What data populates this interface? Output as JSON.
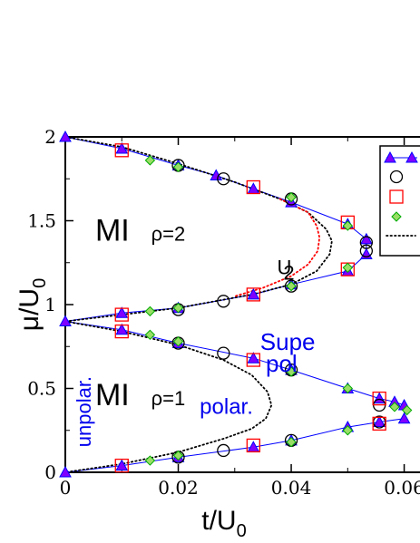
{
  "chart_data": {
    "type": "scatter",
    "title": "",
    "xlabel": "t/U",
    "xlabel_sub": "0",
    "ylabel": "μ/U",
    "ylabel_sub": "0",
    "xlim": [
      0,
      0.0628
    ],
    "ylim": [
      0,
      2
    ],
    "xticks": [
      0,
      0.02,
      0.04,
      0.06
    ],
    "xtick_labels": [
      "0",
      "0.02",
      "0.04",
      "0.06"
    ],
    "yticks": [
      0,
      0.5,
      1,
      1.5,
      2
    ],
    "ytick_labels": [
      "0",
      "0.5",
      "1",
      "1.5",
      "2"
    ],
    "grid": false,
    "legend_position": "top-right",
    "annotations": [
      {
        "text": "MI",
        "x": 0.0053,
        "y": 1.38,
        "style": "big"
      },
      {
        "text": "ρ=2",
        "x": 0.0152,
        "y": 1.38,
        "style": "rho"
      },
      {
        "text": "MI",
        "x": 0.0053,
        "y": 0.4,
        "style": "big"
      },
      {
        "text": "ρ=1",
        "x": 0.0152,
        "y": 0.4,
        "style": "rho"
      },
      {
        "text": "unpolar.",
        "x": 0.0045,
        "y": 0.15,
        "style": "blue-vertical"
      },
      {
        "text": "polar.",
        "x": 0.0238,
        "y": 0.35,
        "style": "blue"
      },
      {
        "text": "Supe",
        "x": 0.0345,
        "y": 0.73,
        "style": "blue-big"
      },
      {
        "text": "pol",
        "x": 0.0355,
        "y": 0.6,
        "style": "blue-big"
      },
      {
        "text": "U",
        "x": 0.0375,
        "y": 1.18,
        "style": "black"
      },
      {
        "text": "2",
        "x": 0.0386,
        "y": 1.15,
        "style": "black-sub"
      }
    ],
    "series": [
      {
        "marker": "triangle",
        "color": "#0000ff",
        "fill": "#7f00ff",
        "line": "solid",
        "points": [
          [
            0,
            2
          ],
          [
            0.01,
            1.93
          ],
          [
            0.02,
            1.83
          ],
          [
            0.0267,
            1.77
          ],
          [
            0.0333,
            1.69
          ],
          [
            0.04,
            1.61
          ],
          [
            0.05,
            1.48
          ],
          [
            0.0533,
            1.39
          ],
          [
            0.0533,
            1.3
          ],
          [
            0.05,
            1.2
          ],
          [
            0.04,
            1.12
          ],
          [
            0.0333,
            1.06
          ],
          [
            0.02,
            0.98
          ],
          [
            0.01,
            0.95
          ],
          [
            0,
            0.9
          ],
          [
            0.01,
            0.85
          ],
          [
            0.02,
            0.77
          ],
          [
            0.0333,
            0.68
          ],
          [
            0.04,
            0.61
          ],
          [
            0.05,
            0.5
          ],
          [
            0.0556,
            0.44
          ],
          [
            0.0583,
            0.42
          ],
          [
            0.06,
            0.4
          ],
          [
            0.06,
            0.32
          ],
          [
            0.0556,
            0.3
          ],
          [
            0.05,
            0.27
          ],
          [
            0.04,
            0.19
          ],
          [
            0.0333,
            0.15
          ],
          [
            0.02,
            0.09
          ],
          [
            0.01,
            0.04
          ],
          [
            0,
            0
          ]
        ]
      },
      {
        "marker": "circle",
        "color": "#000000",
        "points": [
          [
            0.02,
            1.83
          ],
          [
            0.028,
            1.75
          ],
          [
            0.04,
            1.63
          ],
          [
            0.0533,
            1.37
          ],
          [
            0.0533,
            1.32
          ],
          [
            0.04,
            1.11
          ],
          [
            0.028,
            1.02
          ],
          [
            0.02,
            0.97
          ],
          [
            0.02,
            0.77
          ],
          [
            0.028,
            0.71
          ],
          [
            0.04,
            0.61
          ],
          [
            0.0556,
            0.4
          ],
          [
            0.0556,
            0.3
          ],
          [
            0.04,
            0.19
          ],
          [
            0.028,
            0.13
          ],
          [
            0.02,
            0.09
          ]
        ]
      },
      {
        "marker": "square",
        "color": "#ff0000",
        "points": [
          [
            0.01,
            1.92
          ],
          [
            0.0333,
            1.7
          ],
          [
            0.05,
            1.49
          ],
          [
            0.05,
            1.21
          ],
          [
            0.0333,
            1.06
          ],
          [
            0.01,
            0.94
          ],
          [
            0.01,
            0.84
          ],
          [
            0.0333,
            0.67
          ],
          [
            0.0556,
            0.44
          ],
          [
            0.0556,
            0.29
          ],
          [
            0.0333,
            0.16
          ],
          [
            0.01,
            0.04
          ]
        ]
      },
      {
        "marker": "diamond",
        "color": "#00aa00",
        "fill": "#99dd66",
        "points": [
          [
            0.015,
            1.86
          ],
          [
            0.02,
            1.82
          ],
          [
            0.04,
            1.64
          ],
          [
            0.05,
            1.47
          ],
          [
            0.05,
            1.22
          ],
          [
            0.04,
            1.11
          ],
          [
            0.02,
            0.98
          ],
          [
            0.015,
            0.96
          ],
          [
            0.015,
            0.82
          ],
          [
            0.02,
            0.78
          ],
          [
            0.04,
            0.6
          ],
          [
            0.05,
            0.5
          ],
          [
            0.0583,
            0.39
          ],
          [
            0.0605,
            0.37
          ],
          [
            0.05,
            0.25
          ],
          [
            0.04,
            0.18
          ],
          [
            0.02,
            0.1
          ],
          [
            0.015,
            0.07
          ]
        ]
      },
      {
        "marker": "none",
        "color": "#000000",
        "line": "dotted",
        "curves": [
          [
            [
              0,
              2
            ],
            [
              0.01,
              1.94
            ],
            [
              0.02,
              1.84
            ],
            [
              0.03,
              1.73
            ],
            [
              0.038,
              1.63
            ],
            [
              0.043,
              1.55
            ],
            [
              0.0462,
              1.45
            ],
            [
              0.0472,
              1.38
            ],
            [
              0.0468,
              1.3
            ],
            [
              0.0445,
              1.2
            ],
            [
              0.04,
              1.12
            ],
            [
              0.033,
              1.06
            ],
            [
              0.02,
              0.98
            ],
            [
              0.01,
              0.94
            ],
            [
              0,
              0.9
            ]
          ],
          [
            [
              0,
              0.9
            ],
            [
              0.01,
              0.84
            ],
            [
              0.02,
              0.76
            ],
            [
              0.028,
              0.67
            ],
            [
              0.033,
              0.58
            ],
            [
              0.0358,
              0.48
            ],
            [
              0.0365,
              0.4
            ],
            [
              0.0355,
              0.32
            ],
            [
              0.033,
              0.26
            ],
            [
              0.028,
              0.2
            ],
            [
              0.02,
              0.12
            ],
            [
              0.01,
              0.05
            ],
            [
              0,
              0
            ]
          ]
        ]
      },
      {
        "marker": "none",
        "color": "#ff0000",
        "line": "dotted",
        "curves": [
          [
            [
              0.038,
              1.63
            ],
            [
              0.043,
              1.55
            ],
            [
              0.0445,
              1.47
            ],
            [
              0.045,
              1.4
            ],
            [
              0.0447,
              1.32
            ],
            [
              0.043,
              1.24
            ],
            [
              0.04,
              1.17
            ],
            [
              0.035,
              1.1
            ],
            [
              0.03,
              1.05
            ]
          ]
        ]
      }
    ]
  }
}
